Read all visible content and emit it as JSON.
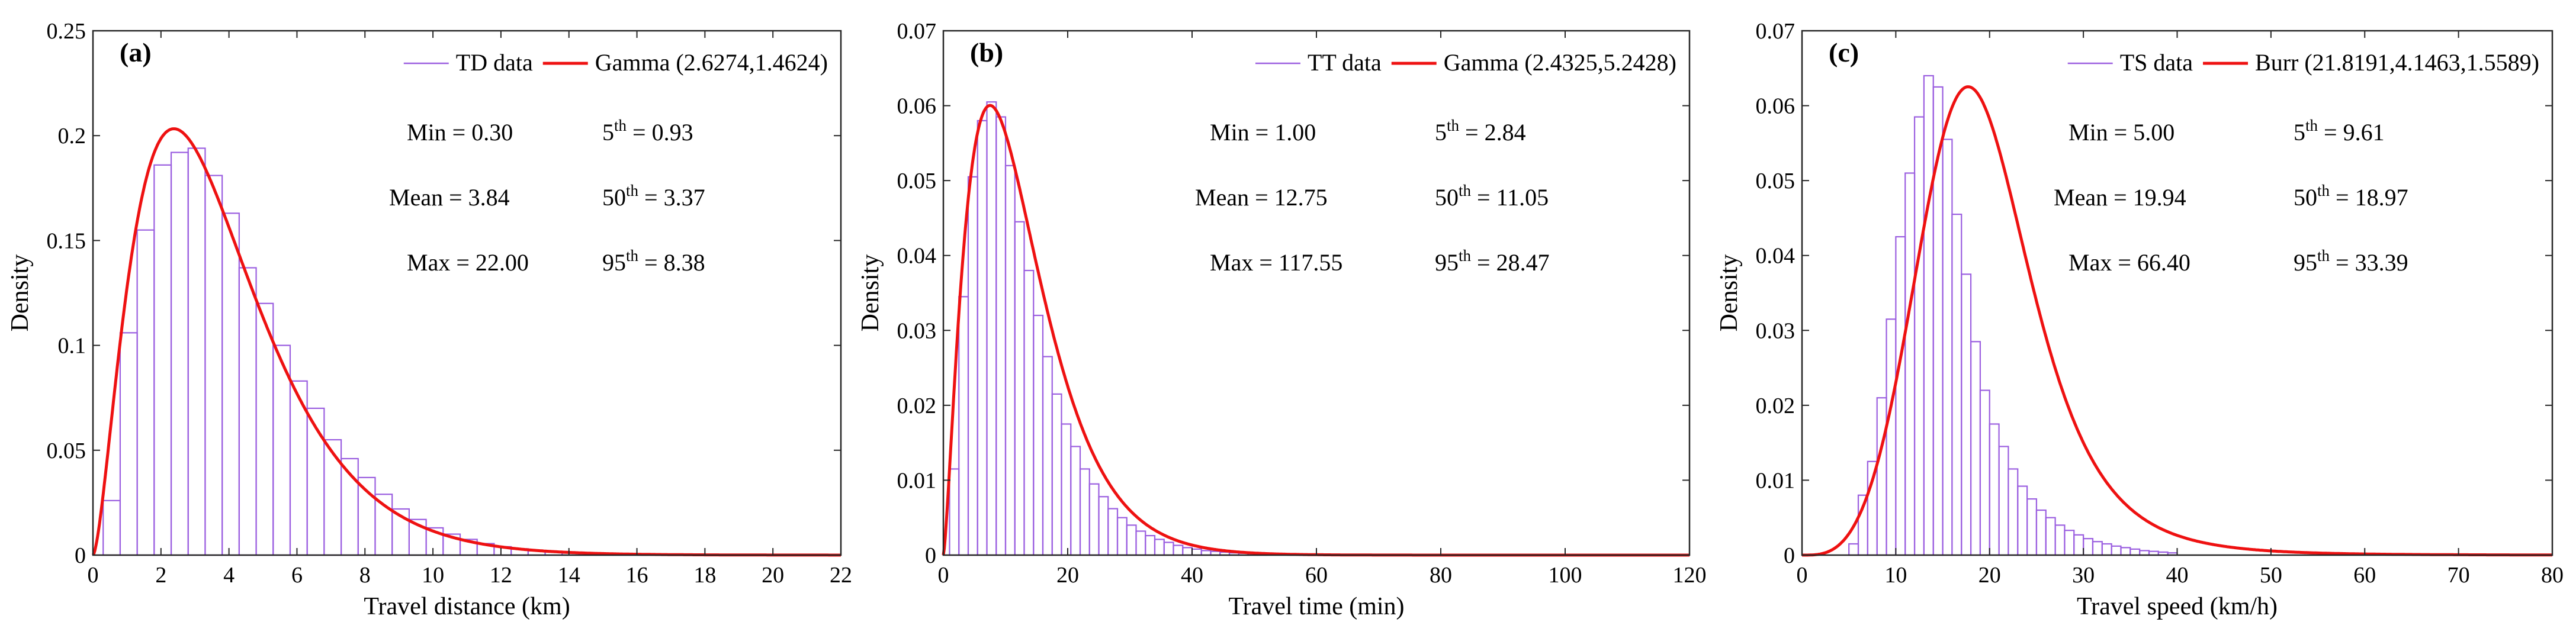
{
  "chart_data": [
    {
      "type": "histogram",
      "tag": "(a)",
      "xlabel": "Travel distance (km)",
      "ylabel": "Density",
      "xlim": [
        0,
        22
      ],
      "ylim": [
        0,
        0.25
      ],
      "xticks": [
        "0",
        "2",
        "4",
        "6",
        "8",
        "10",
        "12",
        "14",
        "16",
        "18",
        "20",
        "22"
      ],
      "yticks": [
        "0",
        "0.05",
        "0.1",
        "0.15",
        "0.2",
        "0.25"
      ],
      "legend": {
        "data_label": "TD data",
        "fit_label": "Gamma (2.6274,1.4624)",
        "position": "top-right"
      },
      "colors": {
        "histogram": "#9b5fe0",
        "fit": "#ee1111"
      },
      "fit": {
        "dist": "gamma",
        "params": [
          2.6274,
          1.4624
        ]
      },
      "bin_width": 0.5,
      "bin_start": 0.3,
      "densities": [
        0.026,
        0.106,
        0.155,
        0.186,
        0.192,
        0.194,
        0.181,
        0.163,
        0.137,
        0.12,
        0.1,
        0.083,
        0.07,
        0.055,
        0.046,
        0.037,
        0.029,
        0.022,
        0.017,
        0.013,
        0.01,
        0.0075,
        0.0055,
        0.004,
        0.003,
        0.002,
        0.0015,
        0.001,
        0.0008,
        0.0006,
        0.0005,
        0.0004
      ],
      "stats": {
        "min": "Min = 0.30",
        "mean": "Mean = 3.84",
        "max": "Max = 22.00",
        "p5_base": "5",
        "p5_value": " = 0.93",
        "p50_base": "50",
        "p50_value": " = 3.37",
        "p95_base": "95",
        "p95_value": " = 8.38",
        "sup": "th"
      }
    },
    {
      "type": "histogram",
      "tag": "(b)",
      "xlabel": "Travel time (min)",
      "ylabel": "Density",
      "xlim": [
        0,
        120
      ],
      "ylim": [
        0,
        0.07
      ],
      "xticks": [
        "0",
        "20",
        "40",
        "60",
        "80",
        "100",
        "120"
      ],
      "yticks": [
        "0",
        "0.01",
        "0.02",
        "0.03",
        "0.04",
        "0.05",
        "0.06",
        "0.07"
      ],
      "legend": {
        "data_label": "TT data",
        "fit_label": "Gamma (2.4325,5.2428)",
        "position": "top-right"
      },
      "colors": {
        "histogram": "#9b5fe0",
        "fit": "#ee1111"
      },
      "fit": {
        "dist": "gamma",
        "params": [
          2.4325,
          5.2428
        ]
      },
      "bin_width": 1.5,
      "bin_start": 1.0,
      "densities": [
        0.0115,
        0.0345,
        0.0505,
        0.058,
        0.0605,
        0.0585,
        0.052,
        0.0445,
        0.038,
        0.032,
        0.0265,
        0.0215,
        0.0175,
        0.0145,
        0.0115,
        0.0095,
        0.0078,
        0.0062,
        0.005,
        0.004,
        0.0032,
        0.0026,
        0.0021,
        0.0017,
        0.0013,
        0.001,
        0.0008,
        0.0006,
        0.0005,
        0.0004,
        0.0003,
        0.00025,
        0.0002,
        0.00015
      ],
      "stats": {
        "min": "Min = 1.00",
        "mean": "Mean = 12.75",
        "max": "Max = 117.55",
        "p5_base": "5",
        "p5_value": " = 2.84",
        "p50_base": "50",
        "p50_value": " = 11.05",
        "p95_base": "95",
        "p95_value": " = 28.47",
        "sup": "th"
      }
    },
    {
      "type": "histogram",
      "tag": "(c)",
      "xlabel": "Travel speed (km/h)",
      "ylabel": "Density",
      "xlim": [
        0,
        80
      ],
      "ylim": [
        0,
        0.07
      ],
      "xticks": [
        "0",
        "10",
        "20",
        "30",
        "40",
        "50",
        "60",
        "70",
        "80"
      ],
      "yticks": [
        "0",
        "0.01",
        "0.02",
        "0.03",
        "0.04",
        "0.05",
        "0.06",
        "0.07"
      ],
      "legend": {
        "data_label": "TS data",
        "fit_label": "Burr (21.8191,4.1463,1.5589)",
        "position": "top-right"
      },
      "colors": {
        "histogram": "#9b5fe0",
        "fit": "#ee1111"
      },
      "fit": {
        "dist": "burr",
        "params": [
          21.8191,
          4.1463,
          1.5589
        ]
      },
      "bin_width": 1.0,
      "bin_start": 5.0,
      "densities": [
        0.0015,
        0.008,
        0.0125,
        0.021,
        0.0315,
        0.0425,
        0.051,
        0.0585,
        0.064,
        0.0625,
        0.0555,
        0.0455,
        0.0375,
        0.0285,
        0.022,
        0.0175,
        0.0145,
        0.0115,
        0.0092,
        0.0075,
        0.006,
        0.005,
        0.004,
        0.0033,
        0.0027,
        0.0022,
        0.0018,
        0.0015,
        0.0012,
        0.001,
        0.0008,
        0.0006,
        0.0005,
        0.0004,
        0.0003
      ],
      "stats": {
        "min": "Min = 5.00",
        "mean": "Mean = 19.94",
        "max": "Max = 66.40",
        "p5_base": "5",
        "p5_value": " = 9.61",
        "p50_base": "50",
        "p50_value": " = 18.97",
        "p95_base": "95",
        "p95_value": " = 33.39",
        "sup": "th"
      }
    }
  ]
}
